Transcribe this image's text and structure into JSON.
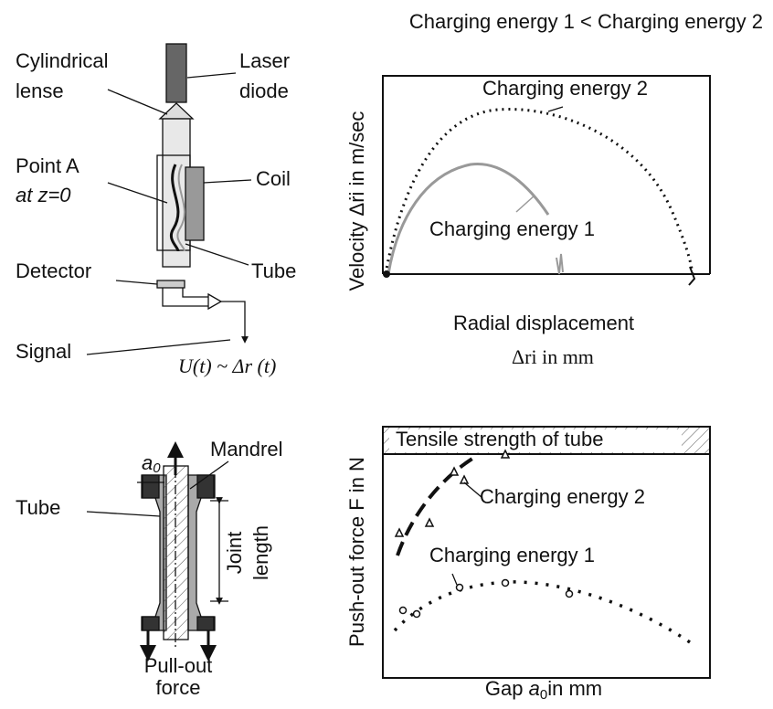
{
  "title": "Charging energy 1 < Charging energy 2",
  "measurement_setup": {
    "cylindrical_lense": [
      "Cylindrical",
      "lense"
    ],
    "laser_diode": [
      "Laser",
      "diode"
    ],
    "point_a": [
      "Point A",
      "at z=0"
    ],
    "coil": "Coil",
    "tube": "Tube",
    "detector": "Detector",
    "signal": "Signal",
    "signal_formula": "U(t) ~ Δr (t)"
  },
  "velocity_plot": {
    "curve_2": "Charging energy 2",
    "curve_1": "Charging energy 1",
    "y_label": "Velocity Δṙi in m/sec",
    "x_label": [
      "Radial displacement",
      "Δri  in mm"
    ]
  },
  "joint_sketch": {
    "gap": {
      "main": "a",
      "sub": "0"
    },
    "mandrel": "Mandrel",
    "tube": "Tube",
    "joint_length": [
      "Joint",
      "length"
    ],
    "force": [
      "Pull-out",
      "force"
    ]
  },
  "force_plot": {
    "limit": "Tensile strength of tube",
    "curve_2": "Charging energy 2",
    "curve_1": "Charging energy 1",
    "y_label": "Push-out force F in N",
    "x_label": {
      "before": "Gap ",
      "main": "a",
      "sub": "0",
      "after": "in mm"
    }
  }
}
